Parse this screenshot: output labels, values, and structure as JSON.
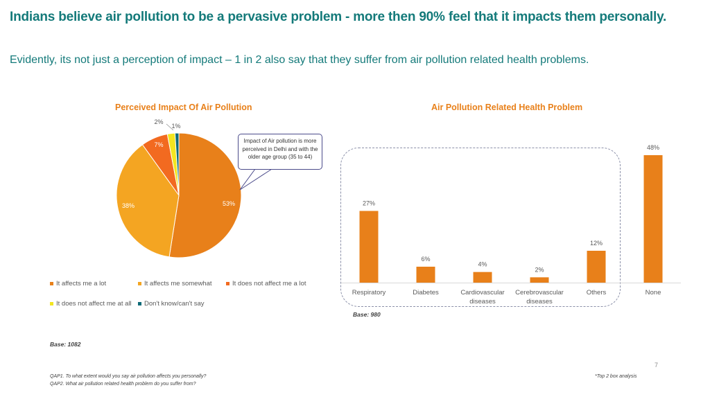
{
  "header": {
    "title": "Indians believe air pollution to be a pervasive problem - more then 90% feel that it impacts them personally.",
    "subtitle": "Evidently, its not just a perception of impact – 1 in 2 also say that they suffer from air pollution related health problems."
  },
  "callout": "Impact of Air pollution is more perceived in Delhi and with the older age group (35 to 44)",
  "pie_base": "Base: 1082",
  "bar_base": "Base: 980",
  "page_number": "7",
  "footnote_right": "*Top 2 box analysis",
  "footnotes": [
    "QAP1. To what extent would you say air pollution affects you personally?",
    "QAP2. What air pollution related health problem do you suffer from?"
  ],
  "colors": {
    "accent_teal": "#147a7a",
    "orange": "#e8801a",
    "light_orange": "#f4a522",
    "red_orange": "#f26a20",
    "yellow": "#f3e51f",
    "teal": "#0e6b78"
  },
  "chart_data": [
    {
      "type": "pie",
      "title": "Perceived Impact Of Air Pollution",
      "slices": [
        {
          "name": "It affects me a lot",
          "value": 53,
          "label": "53%",
          "color": "#e8801a"
        },
        {
          "name": "It affects me somewhat",
          "value": 38,
          "label": "38%",
          "color": "#f4a522"
        },
        {
          "name": "It does not affect me a lot",
          "value": 7,
          "label": "7%",
          "color": "#f26a20"
        },
        {
          "name": "It does not affect me at all",
          "value": 2,
          "label": "2%",
          "color": "#f3e51f"
        },
        {
          "name": "Don't know/can't say",
          "value": 1,
          "label": "1%",
          "color": "#0e6b78"
        }
      ],
      "legend": [
        "It affects me a lot",
        "It affects me somewhat",
        "It does not affect me a lot",
        "It does not affect me at all",
        "Don't know/can't say"
      ]
    },
    {
      "type": "bar",
      "title": "Air Pollution Related Health Problem",
      "categories": [
        "Respiratory",
        "Diabetes",
        "Cardiovascular diseases",
        "Cerebrovascular diseases",
        "Others",
        "None"
      ],
      "values": [
        27,
        6,
        4,
        2,
        12,
        48
      ],
      "labels": [
        "27%",
        "6%",
        "4%",
        "2%",
        "12%",
        "48%"
      ],
      "ylim": [
        0,
        50
      ],
      "color": "#e8801a"
    }
  ]
}
